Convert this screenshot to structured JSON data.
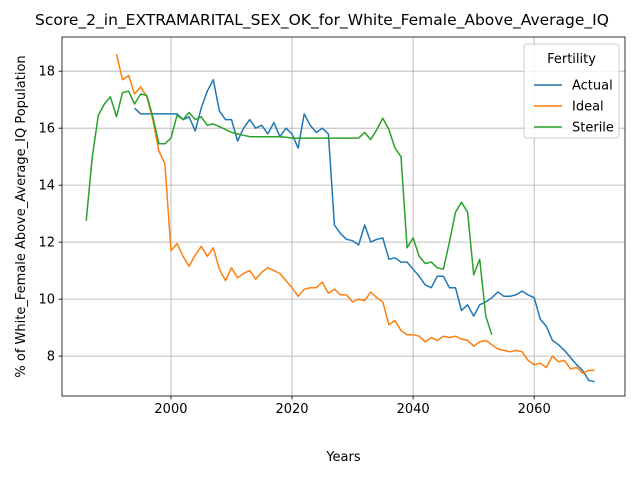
{
  "chart_data": {
    "type": "line",
    "title": "Score_2_in_EXTRAMARITAL_SEX_OK_for_White_Female_Above_Average_IQ",
    "xlabel": "Years",
    "ylabel": "% of White_Female Above_Average_IQ Population",
    "xlim": [
      1982,
      2075
    ],
    "ylim": [
      6.6,
      19.2
    ],
    "xticks": [
      2000,
      2020,
      2040,
      2060
    ],
    "yticks": [
      8,
      10,
      12,
      14,
      16,
      18
    ],
    "grid": true,
    "legend": {
      "title": "Fertility",
      "placement": "top-right"
    },
    "series": [
      {
        "name": "Actual",
        "color": "#1f77b4",
        "x": [
          1994,
          1995,
          1996,
          1997,
          1998,
          1999,
          2000,
          2001,
          2002,
          2003,
          2004,
          2005,
          2006,
          2007,
          2008,
          2009,
          2010,
          2011,
          2012,
          2013,
          2014,
          2015,
          2016,
          2017,
          2018,
          2019,
          2020,
          2021,
          2022,
          2023,
          2024,
          2025,
          2026,
          2027,
          2028,
          2029,
          2030,
          2031,
          2032,
          2033,
          2034,
          2035,
          2036,
          2037,
          2038,
          2039,
          2040,
          2041,
          2042,
          2043,
          2044,
          2045,
          2046,
          2047,
          2048,
          2049,
          2050,
          2051,
          2052,
          2053,
          2054,
          2055,
          2056,
          2057,
          2058,
          2059,
          2060,
          2061,
          2062,
          2063,
          2064,
          2065,
          2066,
          2067,
          2068,
          2069,
          2070
        ],
        "y": [
          16.7,
          16.5,
          16.5,
          16.5,
          16.5,
          16.5,
          16.5,
          16.5,
          16.3,
          16.4,
          15.9,
          16.7,
          17.3,
          17.7,
          16.6,
          16.3,
          16.3,
          15.55,
          16.0,
          16.3,
          16.0,
          16.1,
          15.8,
          16.2,
          15.7,
          16.0,
          15.8,
          15.3,
          16.5,
          16.1,
          15.85,
          16.0,
          15.8,
          12.6,
          12.3,
          12.1,
          12.05,
          11.9,
          12.6,
          12.0,
          12.1,
          12.15,
          11.4,
          11.45,
          11.3,
          11.3,
          11.05,
          10.8,
          10.5,
          10.4,
          10.8,
          10.8,
          10.4,
          10.4,
          9.6,
          9.8,
          9.4,
          9.8,
          9.9,
          10.05,
          10.25,
          10.1,
          10.1,
          10.15,
          10.28,
          10.15,
          10.05,
          9.3,
          9.05,
          8.55,
          8.4,
          8.2,
          7.95,
          7.7,
          7.5,
          7.15,
          7.1
        ]
      },
      {
        "name": "Ideal",
        "color": "#ff7f0e",
        "x": [
          1991,
          1992,
          1993,
          1994,
          1995,
          1996,
          1997,
          1998,
          1999,
          2000,
          2001,
          2002,
          2003,
          2004,
          2005,
          2006,
          2007,
          2008,
          2009,
          2010,
          2011,
          2012,
          2013,
          2014,
          2015,
          2016,
          2017,
          2018,
          2019,
          2020,
          2021,
          2022,
          2023,
          2024,
          2025,
          2026,
          2027,
          2028,
          2029,
          2030,
          2031,
          2032,
          2033,
          2034,
          2035,
          2036,
          2037,
          2038,
          2039,
          2040,
          2041,
          2042,
          2043,
          2044,
          2045,
          2046,
          2047,
          2048,
          2049,
          2050,
          2051,
          2052,
          2053,
          2054,
          2055,
          2056,
          2057,
          2058,
          2059,
          2060,
          2061,
          2062,
          2063,
          2064,
          2065,
          2066,
          2067,
          2068,
          2069,
          2070
        ],
        "y": [
          18.6,
          17.7,
          17.85,
          17.2,
          17.45,
          17.1,
          16.3,
          15.2,
          14.75,
          11.7,
          11.95,
          11.5,
          11.15,
          11.55,
          11.85,
          11.5,
          11.8,
          11.05,
          10.65,
          11.1,
          10.75,
          10.9,
          11.0,
          10.7,
          10.95,
          11.1,
          11.0,
          10.9,
          10.65,
          10.4,
          10.1,
          10.35,
          10.4,
          10.4,
          10.6,
          10.2,
          10.35,
          10.15,
          10.15,
          9.9,
          10.0,
          9.95,
          10.25,
          10.05,
          9.9,
          9.1,
          9.25,
          8.9,
          8.75,
          8.75,
          8.7,
          8.5,
          8.65,
          8.55,
          8.7,
          8.65,
          8.7,
          8.6,
          8.55,
          8.35,
          8.5,
          8.55,
          8.4,
          8.25,
          8.2,
          8.15,
          8.2,
          8.15,
          7.85,
          7.7,
          7.75,
          7.6,
          8.0,
          7.8,
          7.85,
          7.55,
          7.6,
          7.4,
          7.5,
          7.5
        ]
      },
      {
        "name": "Sterile",
        "color": "#2ca02c",
        "x": [
          1986,
          1987,
          1988,
          1989,
          1990,
          1991,
          1992,
          1993,
          1994,
          1995,
          1996,
          1997,
          1998,
          1999,
          2000,
          2001,
          2002,
          2003,
          2004,
          2005,
          2006,
          2007,
          2008,
          2009,
          2010,
          2011,
          2012,
          2013,
          2014,
          2015,
          2016,
          2017,
          2018,
          2019,
          2020,
          2021,
          2022,
          2023,
          2024,
          2025,
          2026,
          2027,
          2028,
          2029,
          2030,
          2031,
          2032,
          2033,
          2034,
          2035,
          2036,
          2037,
          2038,
          2039,
          2040,
          2041,
          2042,
          2043,
          2044,
          2045,
          2046,
          2047,
          2048,
          2049,
          2050,
          2051,
          2052,
          2053
        ],
        "y": [
          12.75,
          15.0,
          16.45,
          16.85,
          17.1,
          16.4,
          17.25,
          17.3,
          16.85,
          17.2,
          17.15,
          16.4,
          15.45,
          15.45,
          15.65,
          16.45,
          16.3,
          16.55,
          16.3,
          16.4,
          16.1,
          16.15,
          16.05,
          15.95,
          15.85,
          15.8,
          15.75,
          15.7,
          15.7,
          15.7,
          15.7,
          15.7,
          15.7,
          15.68,
          15.65,
          15.65,
          15.65,
          15.65,
          15.65,
          15.65,
          15.65,
          15.65,
          15.65,
          15.65,
          15.65,
          15.65,
          15.85,
          15.6,
          15.95,
          16.35,
          15.95,
          15.3,
          15.0,
          11.8,
          12.15,
          11.5,
          11.25,
          11.3,
          11.1,
          11.05,
          12.0,
          13.05,
          13.4,
          13.05,
          10.85,
          11.4,
          9.4,
          8.75
        ]
      }
    ]
  }
}
